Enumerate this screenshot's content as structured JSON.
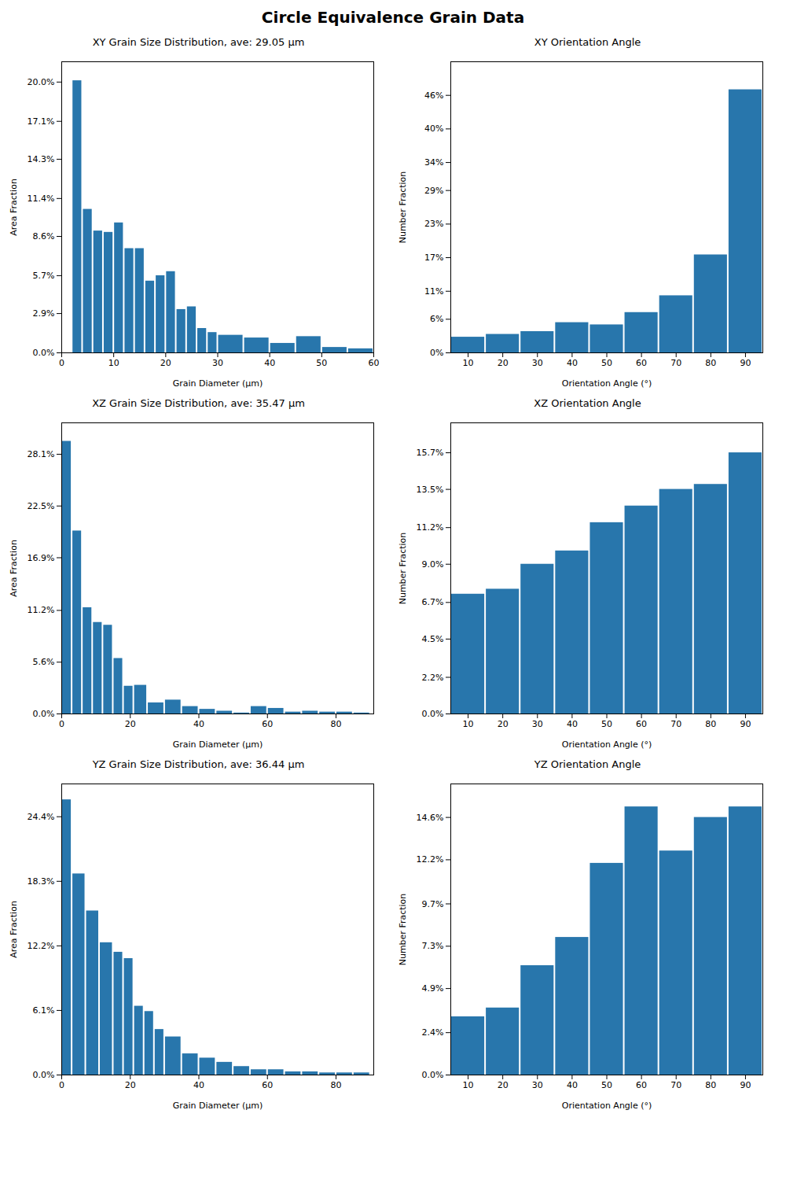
{
  "title": "Circle Equivalence Grain Data",
  "chart_data": [
    {
      "type": "histogram",
      "title": "XY Grain Size Distribution, ave: 29.05 µm",
      "x_label": "Grain Diameter (µm)",
      "y_label": "Area Fraction",
      "color": "#2876AC",
      "bins": [
        2,
        4,
        6,
        8,
        10,
        12,
        14,
        16,
        18,
        20,
        22,
        24,
        26,
        28,
        30,
        35,
        40,
        45,
        50,
        55,
        60
      ],
      "values": [
        0.201,
        0.106,
        0.09,
        0.089,
        0.096,
        0.077,
        0.077,
        0.053,
        0.057,
        0.06,
        0.032,
        0.034,
        0.018,
        0.015,
        0.013,
        0.011,
        0.007,
        0.012,
        0.004,
        0.003
      ],
      "xlim": [
        0,
        60
      ],
      "xticks": [
        0,
        10,
        20,
        30,
        40,
        50,
        60
      ],
      "ylim": [
        0,
        0.215
      ],
      "yticks": [
        {
          "value": 0.0,
          "label": "0.0%"
        },
        {
          "value": 0.029,
          "label": "2.9%"
        },
        {
          "value": 0.057,
          "label": "5.7%"
        },
        {
          "value": 0.086,
          "label": "8.6%"
        },
        {
          "value": 0.114,
          "label": "11.4%"
        },
        {
          "value": 0.143,
          "label": "14.3%"
        },
        {
          "value": 0.171,
          "label": "17.1%"
        },
        {
          "value": 0.2,
          "label": "20.0%"
        }
      ]
    },
    {
      "type": "histogram",
      "title": "XY Orientation Angle",
      "x_label": "Orientation Angle (°)",
      "y_label": "Number Fraction",
      "color": "#2876AC",
      "bins": [
        5,
        15,
        25,
        35,
        45,
        55,
        65,
        75,
        85,
        95
      ],
      "values": [
        0.028,
        0.033,
        0.038,
        0.054,
        0.05,
        0.072,
        0.102,
        0.175,
        0.47
      ],
      "xlim": [
        5,
        95
      ],
      "xticks": [
        10,
        20,
        30,
        40,
        50,
        60,
        70,
        80,
        90
      ],
      "ylim": [
        0,
        0.52
      ],
      "yticks": [
        {
          "value": 0.0,
          "label": "0%"
        },
        {
          "value": 0.06,
          "label": "6%"
        },
        {
          "value": 0.11,
          "label": "11%"
        },
        {
          "value": 0.17,
          "label": "17%"
        },
        {
          "value": 0.23,
          "label": "23%"
        },
        {
          "value": 0.29,
          "label": "29%"
        },
        {
          "value": 0.34,
          "label": "34%"
        },
        {
          "value": 0.4,
          "label": "40%"
        },
        {
          "value": 0.46,
          "label": "46%"
        }
      ]
    },
    {
      "type": "histogram",
      "title": "XZ Grain Size Distribution, ave: 35.47 µm",
      "x_label": "Grain Diameter (µm)",
      "y_label": "Area Fraction",
      "color": "#2876AC",
      "bins": [
        0,
        3,
        6,
        9,
        12,
        15,
        18,
        21,
        25,
        30,
        35,
        40,
        45,
        50,
        55,
        60,
        65,
        70,
        75,
        80,
        85,
        90
      ],
      "values": [
        0.295,
        0.198,
        0.115,
        0.099,
        0.096,
        0.06,
        0.03,
        0.031,
        0.012,
        0.015,
        0.008,
        0.005,
        0.003,
        0.001,
        0.008,
        0.006,
        0.002,
        0.003,
        0.002,
        0.002,
        0.001
      ],
      "xlim": [
        0,
        91
      ],
      "xticks": [
        0,
        20,
        40,
        60,
        80
      ],
      "ylim": [
        0,
        0.315
      ],
      "yticks": [
        {
          "value": 0.0,
          "label": "0.0%"
        },
        {
          "value": 0.056,
          "label": "5.6%"
        },
        {
          "value": 0.112,
          "label": "11.2%"
        },
        {
          "value": 0.169,
          "label": "16.9%"
        },
        {
          "value": 0.225,
          "label": "22.5%"
        },
        {
          "value": 0.281,
          "label": "28.1%"
        }
      ]
    },
    {
      "type": "histogram",
      "title": "XZ Orientation Angle",
      "x_label": "Orientation Angle (°)",
      "y_label": "Number Fraction",
      "color": "#2876AC",
      "bins": [
        5,
        15,
        25,
        35,
        45,
        55,
        65,
        75,
        85,
        95
      ],
      "values": [
        0.072,
        0.075,
        0.09,
        0.098,
        0.115,
        0.125,
        0.135,
        0.138,
        0.157
      ],
      "xlim": [
        5,
        95
      ],
      "xticks": [
        10,
        20,
        30,
        40,
        50,
        60,
        70,
        80,
        90
      ],
      "ylim": [
        0,
        0.175
      ],
      "yticks": [
        {
          "value": 0.0,
          "label": "0.0%"
        },
        {
          "value": 0.022,
          "label": "2.2%"
        },
        {
          "value": 0.045,
          "label": "4.5%"
        },
        {
          "value": 0.067,
          "label": "6.7%"
        },
        {
          "value": 0.09,
          "label": "9.0%"
        },
        {
          "value": 0.112,
          "label": "11.2%"
        },
        {
          "value": 0.135,
          "label": "13.5%"
        },
        {
          "value": 0.157,
          "label": "15.7%"
        }
      ]
    },
    {
      "type": "histogram",
      "title": "YZ Grain Size Distribution, ave: 36.44 µm",
      "x_label": "Grain Diameter (µm)",
      "y_label": "Area Fraction",
      "color": "#2876AC",
      "bins": [
        0,
        3,
        7,
        11,
        15,
        18,
        21,
        24,
        27,
        30,
        35,
        40,
        45,
        50,
        55,
        60,
        65,
        70,
        75,
        80,
        85,
        90
      ],
      "values": [
        0.26,
        0.19,
        0.155,
        0.125,
        0.116,
        0.11,
        0.065,
        0.06,
        0.043,
        0.036,
        0.02,
        0.016,
        0.012,
        0.008,
        0.005,
        0.005,
        0.003,
        0.003,
        0.002,
        0.002,
        0.002
      ],
      "xlim": [
        0,
        91
      ],
      "xticks": [
        0,
        20,
        40,
        60,
        80
      ],
      "ylim": [
        0,
        0.275
      ],
      "yticks": [
        {
          "value": 0.0,
          "label": "0.0%"
        },
        {
          "value": 0.061,
          "label": "6.1%"
        },
        {
          "value": 0.122,
          "label": "12.2%"
        },
        {
          "value": 0.183,
          "label": "18.3%"
        },
        {
          "value": 0.244,
          "label": "24.4%"
        }
      ]
    },
    {
      "type": "histogram",
      "title": "YZ Orientation Angle",
      "x_label": "Orientation Angle (°)",
      "y_label": "Number Fraction",
      "color": "#2876AC",
      "bins": [
        5,
        15,
        25,
        35,
        45,
        55,
        65,
        75,
        85,
        95
      ],
      "values": [
        0.033,
        0.038,
        0.062,
        0.078,
        0.12,
        0.152,
        0.127,
        0.146,
        0.152
      ],
      "xlim": [
        5,
        95
      ],
      "xticks": [
        10,
        20,
        30,
        40,
        50,
        60,
        70,
        80,
        90
      ],
      "ylim": [
        0,
        0.165
      ],
      "yticks": [
        {
          "value": 0.0,
          "label": "0.0%"
        },
        {
          "value": 0.024,
          "label": "2.4%"
        },
        {
          "value": 0.049,
          "label": "4.9%"
        },
        {
          "value": 0.073,
          "label": "7.3%"
        },
        {
          "value": 0.097,
          "label": "9.7%"
        },
        {
          "value": 0.122,
          "label": "12.2%"
        },
        {
          "value": 0.146,
          "label": "14.6%"
        }
      ]
    }
  ]
}
